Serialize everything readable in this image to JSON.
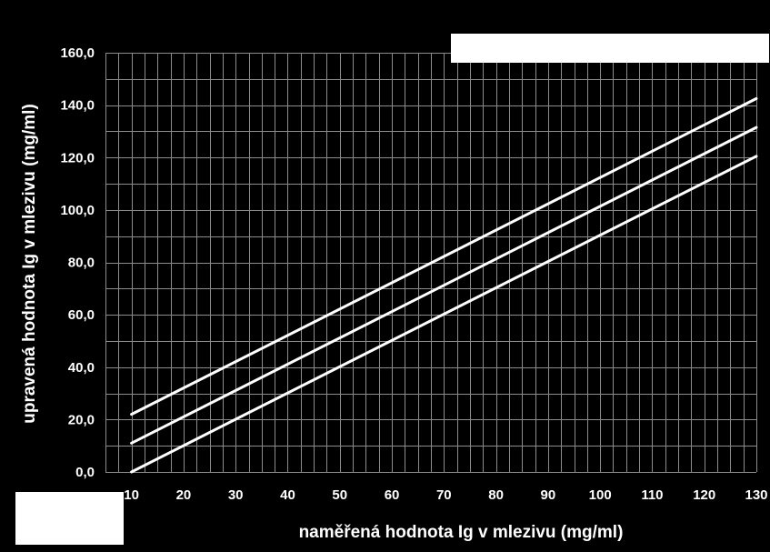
{
  "chart_data": {
    "type": "line",
    "xlabel": "naměřená hodnota Ig v mlezivu (mg/ml)",
    "ylabel": "upravená hodnota Ig v mlezivu  (mg/ml)",
    "x_ticks": [
      "10",
      "20",
      "30",
      "40",
      "50",
      "60",
      "70",
      "80",
      "90",
      "100",
      "110",
      "120",
      "130"
    ],
    "y_ticks": [
      "0,0",
      "20,0",
      "40,0",
      "60,0",
      "80,0",
      "100,0",
      "120,0",
      "140,0",
      "160,0"
    ],
    "xlim": [
      5,
      130
    ],
    "ylim": [
      0,
      160
    ],
    "grid": true,
    "legend": "none",
    "series": [
      {
        "x": [
          10,
          130
        ],
        "y": [
          22,
          142.5
        ]
      },
      {
        "x": [
          10,
          130
        ],
        "y": [
          11,
          131.5
        ]
      },
      {
        "x": [
          10,
          130
        ],
        "y": [
          0,
          120.5
        ]
      }
    ],
    "line_color": "#ffffff",
    "background_color": "#000000",
    "grid_color": "#8c8c8c"
  }
}
